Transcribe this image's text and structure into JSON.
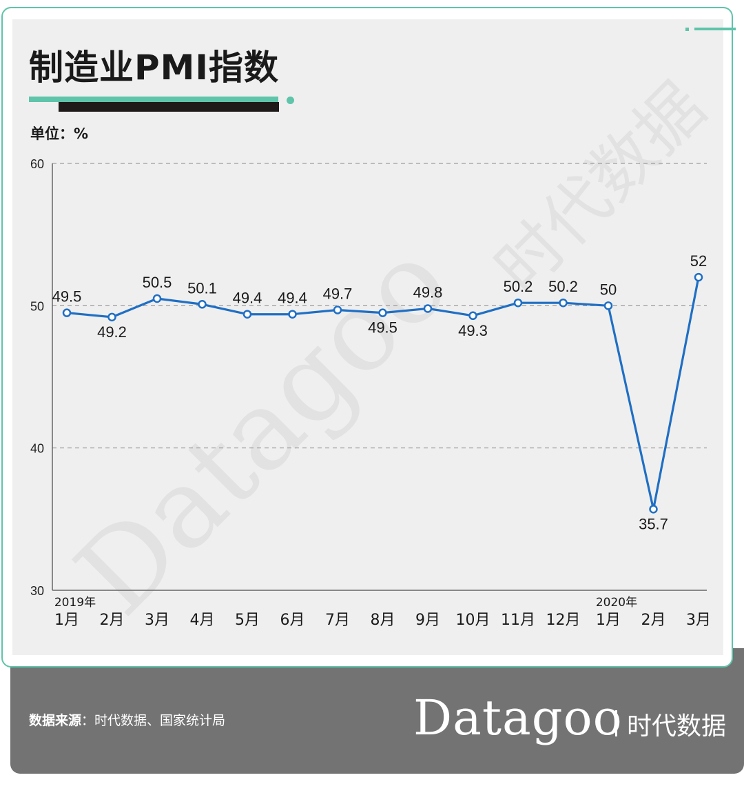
{
  "title": "制造业PMI指数",
  "unit_label": "单位：%",
  "footer": {
    "source_label": "数据来源",
    "source_text": "：时代数据、国家统计局",
    "brand": "Datagoo",
    "brand_cn": "时代数据"
  },
  "watermark": {
    "text_en": "Datagoo",
    "text_cn": "时代数据"
  },
  "colors": {
    "accent": "#5ec4aa",
    "line": "#1f6fc4",
    "title_bar_dark": "#1e1a19",
    "footer_bg": "#737373",
    "panel_bg": "#efefef"
  },
  "chart_data": {
    "type": "line",
    "title": "制造业PMI指数",
    "ylabel": "单位：%",
    "ylim": [
      30,
      60
    ],
    "yticks": [
      30,
      40,
      50,
      60
    ],
    "grid": true,
    "categories": [
      "1月",
      "2月",
      "3月",
      "4月",
      "5月",
      "6月",
      "7月",
      "8月",
      "9月",
      "10月",
      "11月",
      "12月",
      "1月",
      "2月",
      "3月"
    ],
    "year_labels": [
      {
        "index": 0,
        "label": "2019年"
      },
      {
        "index": 12,
        "label": "2020年"
      }
    ],
    "series": [
      {
        "values": [
          49.5,
          49.2,
          50.5,
          50.1,
          49.4,
          49.4,
          49.7,
          49.5,
          49.8,
          49.3,
          50.2,
          50.2,
          50,
          35.7,
          52
        ],
        "labels": [
          "49.5",
          "49.2",
          "50.5",
          "50.1",
          "49.4",
          "49.4",
          "49.7",
          "49.5",
          "49.8",
          "49.3",
          "50.2",
          "50.2",
          "50",
          "35.7",
          "52"
        ]
      }
    ]
  }
}
